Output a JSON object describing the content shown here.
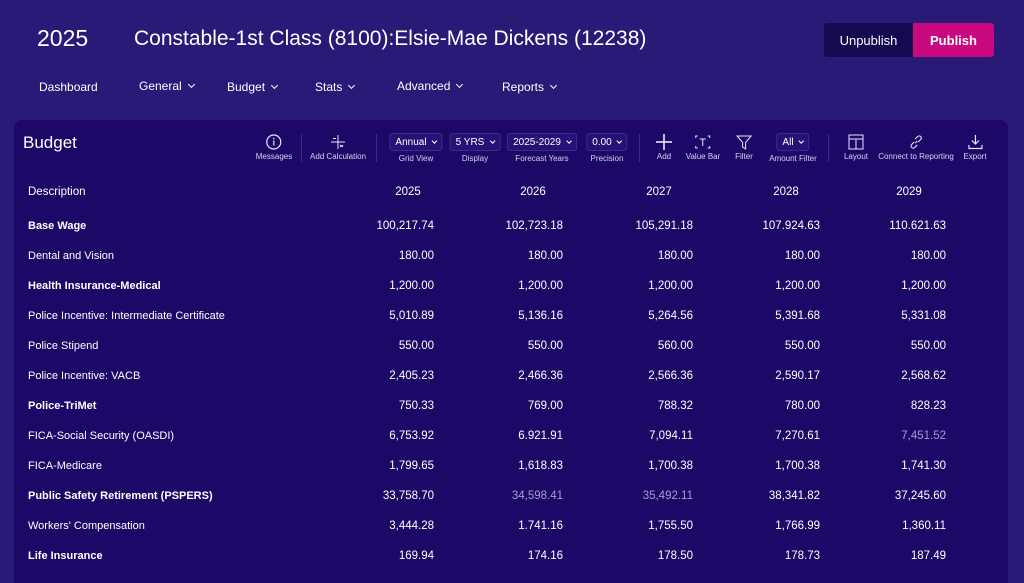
{
  "header": {
    "year": "2025",
    "title": "Constable-1st Class (8100):Elsie-Mae Dickens (12238)",
    "unpublish": "Unpublish",
    "publish": "Publish"
  },
  "nav": [
    "Dashboard",
    "General",
    "Budget",
    "Stats",
    "Advanced",
    "Reports"
  ],
  "panel": {
    "title": "Budget",
    "toolbar": {
      "messages": "Messages",
      "add_calculation": "Add Calculation",
      "grid_view": {
        "value": "Annual",
        "label": "Grid View"
      },
      "display": {
        "value": "5 YRS",
        "label": "Display"
      },
      "forecast": {
        "value": "2025-2029",
        "label": "Forecast Years"
      },
      "precision": {
        "value": "0.00",
        "label": "Precision"
      },
      "add": "Add",
      "value_bar": "Value Bar",
      "filter": "Filter",
      "amount_filter": {
        "value": "All",
        "label": "Amount Filter"
      },
      "layout": "Layout",
      "connect": "Connect to Reporting",
      "export": "Export"
    }
  },
  "table": {
    "headers": [
      "Description",
      "2025",
      "2026",
      "2027",
      "2028",
      "2029"
    ],
    "rows": [
      [
        "Base Wage",
        "100,217.74",
        "102,723.18",
        "105,291.18",
        "107.924.63",
        "110.621.63"
      ],
      [
        "Dental and Vision",
        "180.00",
        "180.00",
        "180.00",
        "180.00",
        "180.00"
      ],
      [
        "Health Insurance-Medical",
        "1,200.00",
        "1,200.00",
        "1,200.00",
        "1,200.00",
        "1,200.00"
      ],
      [
        "Police Incentive: Intermediate Certificate",
        "5,010.89",
        "5,136.16",
        "5,264.56",
        "5,391.68",
        "5,331.08"
      ],
      [
        "Police Stipend",
        "550.00",
        "550.00",
        "560.00",
        "550.00",
        "550.00"
      ],
      [
        "Police Incentive: VACB",
        "2,405.23",
        "2,466.36",
        "2,566.36",
        "2,590.17",
        "2,568.62"
      ],
      [
        "Police-TriMet",
        "750.33",
        "769.00",
        "788.32",
        "780.00",
        "828.23"
      ],
      [
        "FICA-Social Security (OASDI)",
        "6,753.92",
        "6.921.91",
        "7,094.11",
        "7,270.61",
        "7,451.52"
      ],
      [
        "FICA-Medicare",
        "1,799.65",
        "1,618.83",
        "1,700.38",
        "1,700.38",
        "1,741.30"
      ],
      [
        "Public Safety Retirement (PSPERS)",
        "33,758.70",
        "34,598.41",
        "35,492.11",
        "38,341.82",
        "37,245.60"
      ],
      [
        "Workers' Compensation",
        "3,444.28",
        "1.741.16",
        "1,755.50",
        "1,766.99",
        "1,360.11"
      ],
      [
        "Life Insurance",
        "169.94",
        "174.16",
        "178.50",
        "178.73",
        "187.49"
      ]
    ]
  },
  "colors": {
    "background": "#291a78",
    "panel": "#1e0867",
    "publish": "#c8097f",
    "unpublish": "#150a50"
  }
}
